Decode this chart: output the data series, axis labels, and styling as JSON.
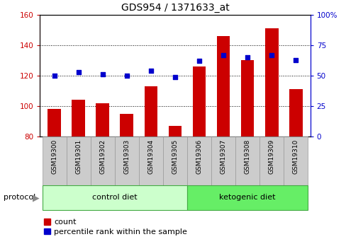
{
  "title": "GDS954 / 1371633_at",
  "samples": [
    "GSM19300",
    "GSM19301",
    "GSM19302",
    "GSM19303",
    "GSM19304",
    "GSM19305",
    "GSM19306",
    "GSM19307",
    "GSM19308",
    "GSM19309",
    "GSM19310"
  ],
  "count_values": [
    98,
    104,
    102,
    95,
    113,
    87,
    126,
    146,
    130,
    151,
    111
  ],
  "percentile_values": [
    50,
    53,
    51,
    50,
    54,
    49,
    62,
    67,
    65,
    67,
    63
  ],
  "ylim_left": [
    80,
    160
  ],
  "ylim_right": [
    0,
    100
  ],
  "yticks_left": [
    80,
    100,
    120,
    140,
    160
  ],
  "yticks_right": [
    0,
    25,
    50,
    75,
    100
  ],
  "groups": [
    {
      "label": "control diet",
      "indices": [
        0,
        1,
        2,
        3,
        4,
        5
      ],
      "color": "#ccffcc"
    },
    {
      "label": "ketogenic diet",
      "indices": [
        6,
        7,
        8,
        9,
        10
      ],
      "color": "#66ee66"
    }
  ],
  "protocol_label": "protocol",
  "bar_color": "#cc0000",
  "scatter_color": "#0000cc",
  "tick_bg_color": "#cccccc",
  "left_axis_color": "#cc0000",
  "right_axis_color": "#0000cc",
  "legend_count_label": "count",
  "legend_percentile_label": "percentile rank within the sample"
}
